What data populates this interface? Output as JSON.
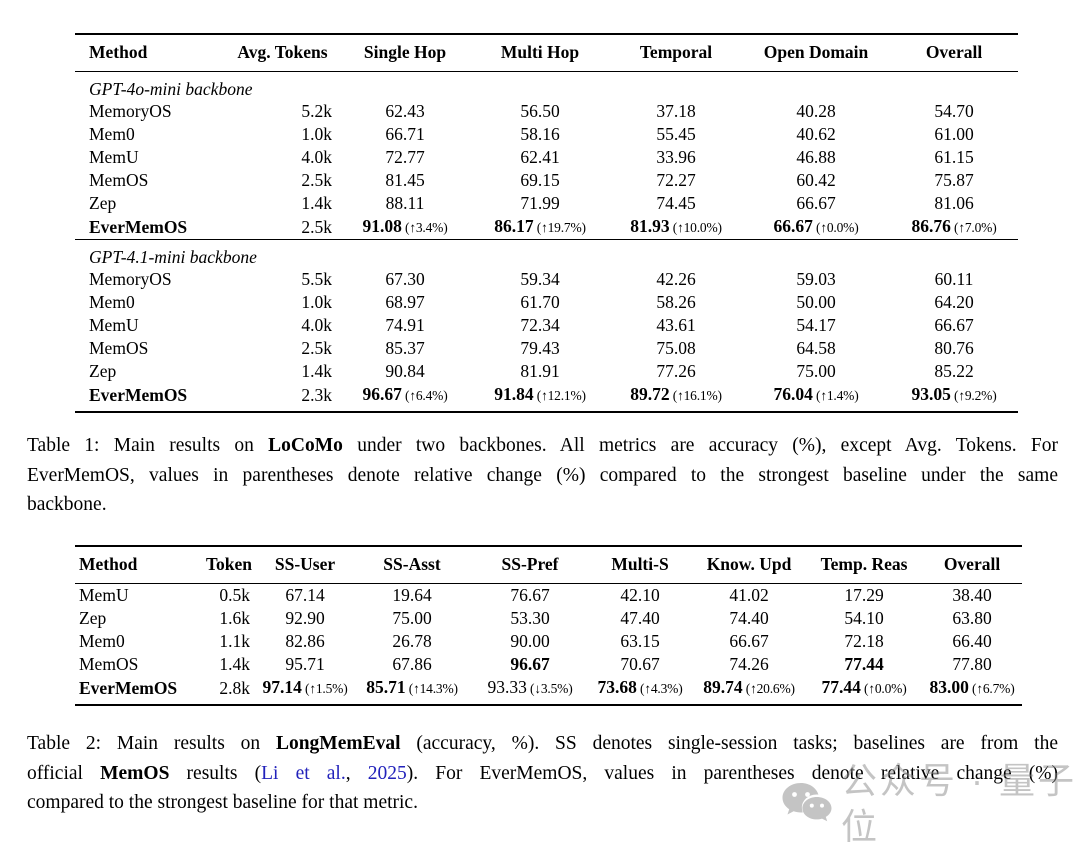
{
  "table1": {
    "columns": [
      "Method",
      "Avg. Tokens",
      "Single Hop",
      "Multi Hop",
      "Temporal",
      "Open Domain",
      "Overall"
    ],
    "sections": [
      {
        "label": "GPT-4o-mini backbone",
        "rows": [
          {
            "method": "MemoryOS",
            "cells": [
              {
                "v": "5.2k"
              },
              {
                "v": "62.43"
              },
              {
                "v": "56.50"
              },
              {
                "v": "37.18"
              },
              {
                "v": "40.28"
              },
              {
                "v": "54.70"
              }
            ]
          },
          {
            "method": "Mem0",
            "cells": [
              {
                "v": "1.0k"
              },
              {
                "v": "66.71"
              },
              {
                "v": "58.16"
              },
              {
                "v": "55.45"
              },
              {
                "v": "40.62"
              },
              {
                "v": "61.00"
              }
            ]
          },
          {
            "method": "MemU",
            "cells": [
              {
                "v": "4.0k"
              },
              {
                "v": "72.77"
              },
              {
                "v": "62.41"
              },
              {
                "v": "33.96"
              },
              {
                "v": "46.88"
              },
              {
                "v": "61.15"
              }
            ]
          },
          {
            "method": "MemOS",
            "cells": [
              {
                "v": "2.5k"
              },
              {
                "v": "81.45"
              },
              {
                "v": "69.15"
              },
              {
                "v": "72.27"
              },
              {
                "v": "60.42"
              },
              {
                "v": "75.87"
              }
            ]
          },
          {
            "method": "Zep",
            "cells": [
              {
                "v": "1.4k"
              },
              {
                "v": "88.11"
              },
              {
                "v": "71.99"
              },
              {
                "v": "74.45"
              },
              {
                "v": "66.67"
              },
              {
                "v": "81.06"
              }
            ]
          },
          {
            "method": "EverMemOS",
            "b": true,
            "cells": [
              {
                "v": "2.5k"
              },
              {
                "v": "91.08",
                "b": true,
                "d": "(↑3.4%)"
              },
              {
                "v": "86.17",
                "b": true,
                "d": "(↑19.7%)"
              },
              {
                "v": "81.93",
                "b": true,
                "d": "(↑10.0%)"
              },
              {
                "v": "66.67",
                "b": true,
                "d": "(↑0.0%)"
              },
              {
                "v": "86.76",
                "b": true,
                "d": "(↑7.0%)"
              }
            ]
          }
        ]
      },
      {
        "label": "GPT-4.1-mini backbone",
        "rows": [
          {
            "method": "MemoryOS",
            "cells": [
              {
                "v": "5.5k"
              },
              {
                "v": "67.30"
              },
              {
                "v": "59.34"
              },
              {
                "v": "42.26"
              },
              {
                "v": "59.03"
              },
              {
                "v": "60.11"
              }
            ]
          },
          {
            "method": "Mem0",
            "cells": [
              {
                "v": "1.0k"
              },
              {
                "v": "68.97"
              },
              {
                "v": "61.70"
              },
              {
                "v": "58.26"
              },
              {
                "v": "50.00"
              },
              {
                "v": "64.20"
              }
            ]
          },
          {
            "method": "MemU",
            "cells": [
              {
                "v": "4.0k"
              },
              {
                "v": "74.91"
              },
              {
                "v": "72.34"
              },
              {
                "v": "43.61"
              },
              {
                "v": "54.17"
              },
              {
                "v": "66.67"
              }
            ]
          },
          {
            "method": "MemOS",
            "cells": [
              {
                "v": "2.5k"
              },
              {
                "v": "85.37"
              },
              {
                "v": "79.43"
              },
              {
                "v": "75.08"
              },
              {
                "v": "64.58"
              },
              {
                "v": "80.76"
              }
            ]
          },
          {
            "method": "Zep",
            "cells": [
              {
                "v": "1.4k"
              },
              {
                "v": "90.84"
              },
              {
                "v": "81.91"
              },
              {
                "v": "77.26"
              },
              {
                "v": "75.00"
              },
              {
                "v": "85.22"
              }
            ]
          },
          {
            "method": "EverMemOS",
            "b": true,
            "cells": [
              {
                "v": "2.3k"
              },
              {
                "v": "96.67",
                "b": true,
                "d": "(↑6.4%)"
              },
              {
                "v": "91.84",
                "b": true,
                "d": "(↑12.1%)"
              },
              {
                "v": "89.72",
                "b": true,
                "d": "(↑16.1%)"
              },
              {
                "v": "76.04",
                "b": true,
                "d": "(↑1.4%)"
              },
              {
                "v": "93.05",
                "b": true,
                "d": "(↑9.2%)"
              }
            ]
          }
        ]
      }
    ]
  },
  "caption1": {
    "lines": [
      [
        {
          "t": "Table 1: Main results on "
        },
        {
          "t": "LoCoMo",
          "b": true
        },
        {
          "t": " under two backbones. All metrics are accuracy (%), except Avg. Tokens. For"
        }
      ],
      [
        {
          "t": "EverMemOS, values in parentheses denote relative change (%) compared to the strongest baseline under the same"
        }
      ],
      [
        {
          "t": "backbone."
        }
      ]
    ]
  },
  "table2": {
    "columns": [
      "Method",
      "Token",
      "SS-User",
      "SS-Asst",
      "SS-Pref",
      "Multi-S",
      "Know. Upd",
      "Temp. Reas",
      "Overall"
    ],
    "rows": [
      {
        "method": "MemU",
        "cells": [
          {
            "v": "0.5k"
          },
          {
            "v": "67.14"
          },
          {
            "v": "19.64"
          },
          {
            "v": "76.67"
          },
          {
            "v": "42.10"
          },
          {
            "v": "41.02"
          },
          {
            "v": "17.29"
          },
          {
            "v": "38.40"
          }
        ]
      },
      {
        "method": "Zep",
        "cells": [
          {
            "v": "1.6k"
          },
          {
            "v": "92.90"
          },
          {
            "v": "75.00"
          },
          {
            "v": "53.30"
          },
          {
            "v": "47.40"
          },
          {
            "v": "74.40"
          },
          {
            "v": "54.10"
          },
          {
            "v": "63.80"
          }
        ]
      },
      {
        "method": "Mem0",
        "cells": [
          {
            "v": "1.1k"
          },
          {
            "v": "82.86"
          },
          {
            "v": "26.78"
          },
          {
            "v": "90.00"
          },
          {
            "v": "63.15"
          },
          {
            "v": "66.67"
          },
          {
            "v": "72.18"
          },
          {
            "v": "66.40"
          }
        ]
      },
      {
        "method": "MemOS",
        "cells": [
          {
            "v": "1.4k"
          },
          {
            "v": "95.71"
          },
          {
            "v": "67.86"
          },
          {
            "v": "96.67",
            "b": true
          },
          {
            "v": "70.67"
          },
          {
            "v": "74.26"
          },
          {
            "v": "77.44",
            "b": true
          },
          {
            "v": "77.80"
          }
        ]
      },
      {
        "method": "EverMemOS",
        "b": true,
        "cells": [
          {
            "v": "2.8k"
          },
          {
            "v": "97.14",
            "b": true,
            "d": "(↑1.5%)"
          },
          {
            "v": "85.71",
            "b": true,
            "d": "(↑14.3%)"
          },
          {
            "v": "93.33",
            "d": "(↓3.5%)"
          },
          {
            "v": "73.68",
            "b": true,
            "d": "(↑4.3%)"
          },
          {
            "v": "89.74",
            "b": true,
            "d": "(↑20.6%)"
          },
          {
            "v": "77.44",
            "b": true,
            "d": "(↑0.0%)"
          },
          {
            "v": "83.00",
            "b": true,
            "d": "(↑6.7%)"
          }
        ]
      }
    ]
  },
  "caption2": {
    "lines": [
      [
        {
          "t": "Table 2: Main results on "
        },
        {
          "t": "LongMemEval",
          "b": true
        },
        {
          "t": " (accuracy, %). SS denotes single-session tasks; baselines are from the"
        }
      ],
      [
        {
          "t": "official "
        },
        {
          "t": "MemOS",
          "b": true
        },
        {
          "t": " results ("
        },
        {
          "t": "Li et al.",
          "blue": true
        },
        {
          "t": ", "
        },
        {
          "t": "2025",
          "blue": true
        },
        {
          "t": "). For EverMemOS, values in parentheses denote relative change (%)"
        }
      ],
      [
        {
          "t": "compared to the strongest baseline for that metric."
        }
      ]
    ]
  },
  "watermark": {
    "icon": "wechat-chat-bubbles-icon",
    "text": "公众号 · 量子位"
  }
}
